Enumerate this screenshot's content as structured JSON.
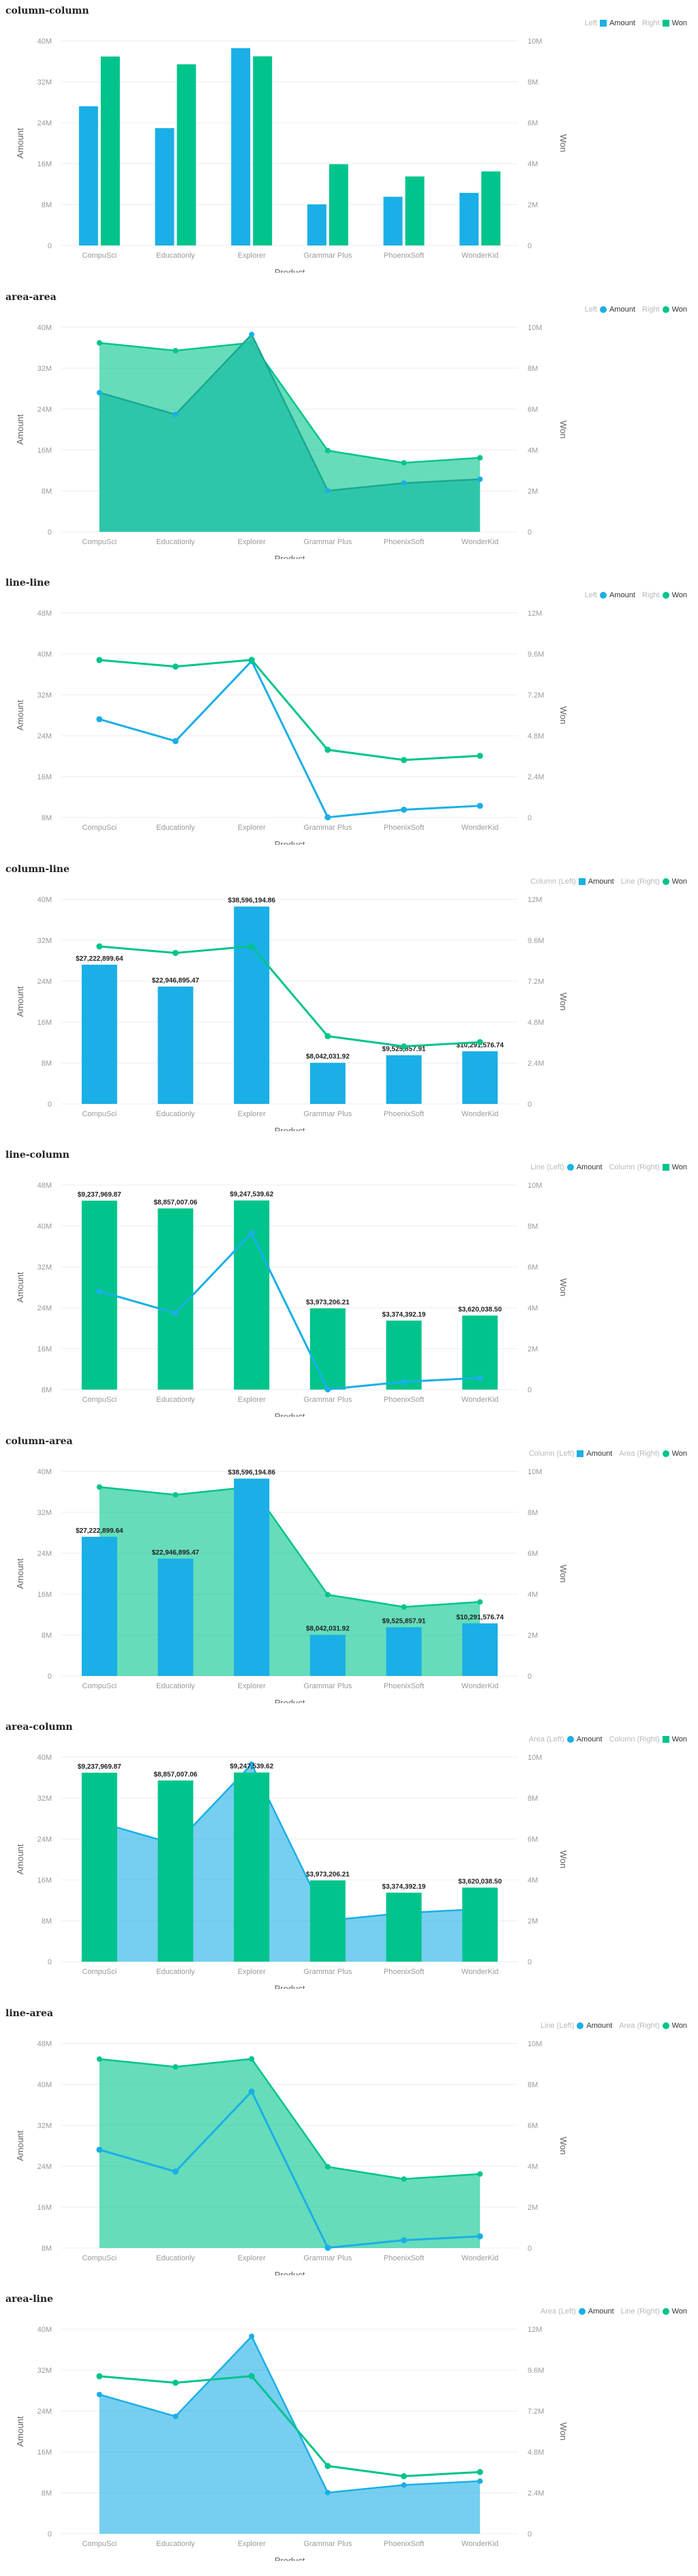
{
  "colors": {
    "blue": "#1aafe6",
    "green": "#00c48c",
    "grid": "#ececec",
    "axis_text": "#9a9a9a"
  },
  "chart_data": [
    {
      "type": "bar",
      "title": "column-column",
      "legend": {
        "left_label": "Left",
        "left_series": "Amount",
        "right_label": "Right",
        "right_series": "Won"
      },
      "categories": [
        "CompuSci",
        "Educationly",
        "Explorer",
        "Grammar Plus",
        "PhoenixSoft",
        "WonderKid"
      ],
      "xlabel": "Product",
      "ylabel_left": "Amount",
      "ylabel_right": "Won",
      "left_ticks": [
        "0",
        "8M",
        "16M",
        "24M",
        "32M",
        "40M"
      ],
      "left_max": 40000000,
      "right_ticks": [
        "0",
        "2M",
        "4M",
        "6M",
        "8M",
        "10M"
      ],
      "right_max": 10000000,
      "series": [
        {
          "name": "Amount",
          "axis": "left",
          "kind": "bar",
          "color": "blue",
          "values": [
            27222899.64,
            22946895.47,
            38596194.86,
            8042031.92,
            9525857.91,
            10291576.74
          ]
        },
        {
          "name": "Won",
          "axis": "right",
          "kind": "bar",
          "color": "green",
          "values": [
            9237969.87,
            8857007.06,
            9247539.62,
            3973206.21,
            3374392.19,
            3620038.5
          ]
        }
      ],
      "labels": []
    },
    {
      "type": "area",
      "title": "area-area",
      "legend": {
        "left_label": "Left",
        "left_series": "Amount",
        "right_label": "Right",
        "right_series": "Won"
      },
      "categories": [
        "CompuSci",
        "Educationly",
        "Explorer",
        "Grammar Plus",
        "PhoenixSoft",
        "WonderKid"
      ],
      "xlabel": "Product",
      "ylabel_left": "Amount",
      "ylabel_right": "Won",
      "left_ticks": [
        "0",
        "8M",
        "16M",
        "24M",
        "32M",
        "40M"
      ],
      "left_max": 40000000,
      "right_ticks": [
        "0",
        "2M",
        "4M",
        "6M",
        "8M",
        "10M"
      ],
      "right_max": 10000000,
      "series": [
        {
          "name": "Won",
          "axis": "right",
          "kind": "area",
          "color": "green",
          "values": [
            9237969.87,
            8857007.06,
            9247539.62,
            3973206.21,
            3374392.19,
            3620038.5
          ]
        },
        {
          "name": "Amount",
          "axis": "left",
          "kind": "area",
          "color": "teal",
          "values": [
            27222899.64,
            22946895.47,
            38596194.86,
            8042031.92,
            9525857.91,
            10291576.74
          ]
        }
      ],
      "labels": []
    },
    {
      "type": "line",
      "title": "line-line",
      "legend": {
        "left_label": "Left",
        "left_series": "Amount",
        "right_label": "Right",
        "right_series": "Won"
      },
      "categories": [
        "CompuSci",
        "Educationly",
        "Explorer",
        "Grammar Plus",
        "PhoenixSoft",
        "WonderKid"
      ],
      "xlabel": "Product",
      "ylabel_left": "Amount",
      "ylabel_right": "Won",
      "left_ticks": [
        "8M",
        "16M",
        "24M",
        "32M",
        "40M",
        "48M"
      ],
      "left_min": 8000000,
      "left_max": 48000000,
      "right_ticks": [
        "0",
        "2.4M",
        "4.8M",
        "7.2M",
        "9.6M",
        "12M"
      ],
      "right_max": 12000000,
      "series": [
        {
          "name": "Amount",
          "axis": "left",
          "kind": "line",
          "color": "blue",
          "values": [
            27222899.64,
            22946895.47,
            38596194.86,
            8042031.92,
            9525857.91,
            10291576.74
          ]
        },
        {
          "name": "Won",
          "axis": "right",
          "kind": "line",
          "color": "green",
          "values": [
            9237969.87,
            8857007.06,
            9247539.62,
            3973206.21,
            3374392.19,
            3620038.5
          ]
        }
      ],
      "labels": []
    },
    {
      "type": "bar",
      "title": "column-line",
      "legend": {
        "left_label": "Column (Left)",
        "left_series": "Amount",
        "right_label": "Line (Right)",
        "right_series": "Won"
      },
      "categories": [
        "CompuSci",
        "Educationly",
        "Explorer",
        "Grammar Plus",
        "PhoenixSoft",
        "WonderKid"
      ],
      "xlabel": "Product",
      "ylabel_left": "Amount",
      "ylabel_right": "Won",
      "left_ticks": [
        "0",
        "8M",
        "16M",
        "24M",
        "32M",
        "40M"
      ],
      "left_max": 40000000,
      "right_ticks": [
        "0",
        "2.4M",
        "4.8M",
        "7.2M",
        "9.6M",
        "12M"
      ],
      "right_max": 12000000,
      "series": [
        {
          "name": "Amount",
          "axis": "left",
          "kind": "bar",
          "color": "blue",
          "values": [
            27222899.64,
            22946895.47,
            38596194.86,
            8042031.92,
            9525857.91,
            10291576.74
          ]
        },
        {
          "name": "Won",
          "axis": "right",
          "kind": "line",
          "color": "green",
          "values": [
            9237969.87,
            8857007.06,
            9247539.62,
            3973206.21,
            3374392.19,
            3620038.5
          ]
        }
      ],
      "labels": [
        "$27,222,899.64",
        "$22,946,895.47",
        "$38,596,194.86",
        "$8,042,031.92",
        "$9,525,857.91",
        "$10,291,576.74"
      ]
    },
    {
      "type": "bar",
      "title": "line-column",
      "legend": {
        "left_label": "Line (Left)",
        "left_series": "Amount",
        "right_label": "Column (Right)",
        "right_series": "Won"
      },
      "categories": [
        "CompuSci",
        "Educationly",
        "Explorer",
        "Grammar Plus",
        "PhoenixSoft",
        "WonderKid"
      ],
      "xlabel": "Product",
      "ylabel_left": "Amount",
      "ylabel_right": "Won",
      "left_ticks": [
        "8M",
        "16M",
        "24M",
        "32M",
        "40M",
        "48M"
      ],
      "left_min": 8000000,
      "left_max": 48000000,
      "right_ticks": [
        "0",
        "2M",
        "4M",
        "6M",
        "8M",
        "10M"
      ],
      "right_max": 10000000,
      "series": [
        {
          "name": "Won",
          "axis": "right",
          "kind": "bar",
          "color": "green",
          "values": [
            9237969.87,
            8857007.06,
            9247539.62,
            3973206.21,
            3374392.19,
            3620038.5
          ]
        },
        {
          "name": "Amount",
          "axis": "left",
          "kind": "line",
          "color": "blue",
          "values": [
            27222899.64,
            22946895.47,
            38596194.86,
            8042031.92,
            9525857.91,
            10291576.74
          ]
        }
      ],
      "labels": [
        "$9,237,969.87",
        "$8,857,007.06",
        "$9,247,539.62",
        "$3,973,206.21",
        "$3,374,392.19",
        "$3,620,038.50"
      ]
    },
    {
      "type": "bar",
      "title": "column-area",
      "legend": {
        "left_label": "Column (Left)",
        "left_series": "Amount",
        "right_label": "Area (Right)",
        "right_series": "Won"
      },
      "categories": [
        "CompuSci",
        "Educationly",
        "Explorer",
        "Grammar Plus",
        "PhoenixSoft",
        "WonderKid"
      ],
      "xlabel": "Product",
      "ylabel_left": "Amount",
      "ylabel_right": "Won",
      "left_ticks": [
        "0",
        "8M",
        "16M",
        "24M",
        "32M",
        "40M"
      ],
      "left_max": 40000000,
      "right_ticks": [
        "0",
        "2M",
        "4M",
        "6M",
        "8M",
        "10M"
      ],
      "right_max": 10000000,
      "series": [
        {
          "name": "Won",
          "axis": "right",
          "kind": "area",
          "color": "green",
          "values": [
            9237969.87,
            8857007.06,
            9247539.62,
            3973206.21,
            3374392.19,
            3620038.5
          ]
        },
        {
          "name": "Amount",
          "axis": "left",
          "kind": "bar",
          "color": "blue",
          "values": [
            27222899.64,
            22946895.47,
            38596194.86,
            8042031.92,
            9525857.91,
            10291576.74
          ]
        }
      ],
      "labels": [
        "$27,222,899.64",
        "$22,946,895.47",
        "$38,596,194.86",
        "$8,042,031.92",
        "$9,525,857.91",
        "$10,291,576.74"
      ]
    },
    {
      "type": "bar",
      "title": "area-column",
      "legend": {
        "left_label": "Area (Left)",
        "left_series": "Amount",
        "right_label": "Column (Right)",
        "right_series": "Won"
      },
      "categories": [
        "CompuSci",
        "Educationly",
        "Explorer",
        "Grammar Plus",
        "PhoenixSoft",
        "WonderKid"
      ],
      "xlabel": "Product",
      "ylabel_left": "Amount",
      "ylabel_right": "Won",
      "left_ticks": [
        "0",
        "8M",
        "16M",
        "24M",
        "32M",
        "40M"
      ],
      "left_max": 40000000,
      "right_ticks": [
        "0",
        "2M",
        "4M",
        "6M",
        "8M",
        "10M"
      ],
      "right_max": 10000000,
      "series": [
        {
          "name": "Amount",
          "axis": "left",
          "kind": "area",
          "color": "blue",
          "values": [
            27222899.64,
            22946895.47,
            38596194.86,
            8042031.92,
            9525857.91,
            10291576.74
          ]
        },
        {
          "name": "Won",
          "axis": "right",
          "kind": "bar",
          "color": "green",
          "values": [
            9237969.87,
            8857007.06,
            9247539.62,
            3973206.21,
            3374392.19,
            3620038.5
          ]
        }
      ],
      "labels": [
        "$9,237,969.87",
        "$8,857,007.06",
        "$9,247,539.62",
        "$3,973,206.21",
        "$3,374,392.19",
        "$3,620,038.50"
      ]
    },
    {
      "type": "area",
      "title": "line-area",
      "legend": {
        "left_label": "Line (Left)",
        "left_series": "Amount",
        "right_label": "Area (Right)",
        "right_series": "Won"
      },
      "categories": [
        "CompuSci",
        "Educationly",
        "Explorer",
        "Grammar Plus",
        "PhoenixSoft",
        "WonderKid"
      ],
      "xlabel": "Product",
      "ylabel_left": "Amount",
      "ylabel_right": "Won",
      "left_ticks": [
        "8M",
        "16M",
        "24M",
        "32M",
        "40M",
        "48M"
      ],
      "left_min": 8000000,
      "left_max": 48000000,
      "right_ticks": [
        "0",
        "2M",
        "4M",
        "6M",
        "8M",
        "10M"
      ],
      "right_max": 10000000,
      "series": [
        {
          "name": "Won",
          "axis": "right",
          "kind": "area",
          "color": "green",
          "values": [
            9237969.87,
            8857007.06,
            9247539.62,
            3973206.21,
            3374392.19,
            3620038.5
          ]
        },
        {
          "name": "Amount",
          "axis": "left",
          "kind": "line",
          "color": "blue",
          "values": [
            27222899.64,
            22946895.47,
            38596194.86,
            8042031.92,
            9525857.91,
            10291576.74
          ]
        }
      ],
      "labels": []
    },
    {
      "type": "area",
      "title": "area-line",
      "legend": {
        "left_label": "Area (Left)",
        "left_series": "Amount",
        "right_label": "Line (Right)",
        "right_series": "Won"
      },
      "categories": [
        "CompuSci",
        "Educationly",
        "Explorer",
        "Grammar Plus",
        "PhoenixSoft",
        "WonderKid"
      ],
      "xlabel": "Product",
      "ylabel_left": "Amount",
      "ylabel_right": "Won",
      "left_ticks": [
        "0",
        "8M",
        "16M",
        "24M",
        "32M",
        "40M"
      ],
      "left_max": 40000000,
      "right_ticks": [
        "0",
        "2.4M",
        "4.8M",
        "7.2M",
        "9.6M",
        "12M"
      ],
      "right_max": 12000000,
      "series": [
        {
          "name": "Amount",
          "axis": "left",
          "kind": "area",
          "color": "blue",
          "values": [
            27222899.64,
            22946895.47,
            38596194.86,
            8042031.92,
            9525857.91,
            10291576.74
          ]
        },
        {
          "name": "Won",
          "axis": "right",
          "kind": "line",
          "color": "green",
          "values": [
            9237969.87,
            8857007.06,
            9247539.62,
            3973206.21,
            3374392.19,
            3620038.5
          ]
        }
      ],
      "labels": []
    }
  ]
}
